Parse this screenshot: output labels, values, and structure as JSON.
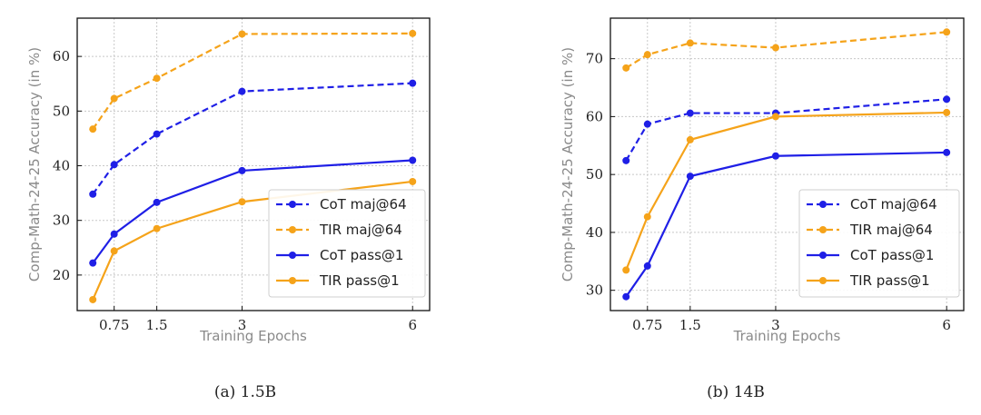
{
  "chart_data": [
    {
      "type": "line",
      "ylabel": "Comp-Math-24-25 Accuracy (in %)",
      "xlabel": "Training Epochs",
      "x": [
        0.375,
        0.75,
        1.5,
        3,
        6
      ],
      "xticks": [
        0.75,
        1.5,
        3,
        6
      ],
      "xtick_labels": [
        "0.75",
        "1.5",
        "3",
        "6"
      ],
      "yticks": [
        20,
        30,
        40,
        50,
        60
      ],
      "xlim": [
        0.1,
        6.3
      ],
      "ylim": [
        13.5,
        67
      ],
      "grid": true,
      "legend_position": "lower-right",
      "series": [
        {
          "name": "CoT maj@64",
          "style": "dashed",
          "color": "#1f1fe6",
          "values": [
            34.8,
            40.2,
            45.8,
            53.6,
            55.1
          ]
        },
        {
          "name": "TIR maj@64",
          "style": "dashed",
          "color": "#f5a31a",
          "values": [
            46.7,
            52.3,
            56.0,
            64.1,
            64.2
          ]
        },
        {
          "name": "CoT pass@1",
          "style": "solid",
          "color": "#1f1fe6",
          "values": [
            22.2,
            27.5,
            33.3,
            39.1,
            41.0
          ]
        },
        {
          "name": "TIR pass@1",
          "style": "solid",
          "color": "#f5a31a",
          "values": [
            15.5,
            24.4,
            28.5,
            33.4,
            37.1
          ]
        }
      ]
    },
    {
      "type": "line",
      "ylabel": "Comp-Math-24-25 Accuracy (in %)",
      "xlabel": "Training Epochs",
      "x": [
        0.375,
        0.75,
        1.5,
        3,
        6
      ],
      "xticks": [
        0.75,
        1.5,
        3,
        6
      ],
      "xtick_labels": [
        "0.75",
        "1.5",
        "3",
        "6"
      ],
      "yticks": [
        30,
        40,
        50,
        60,
        70
      ],
      "xlim": [
        0.1,
        6.3
      ],
      "ylim": [
        26.5,
        77
      ],
      "grid": true,
      "legend_position": "lower-right",
      "series": [
        {
          "name": "CoT maj@64",
          "style": "dashed",
          "color": "#1f1fe6",
          "values": [
            52.4,
            58.7,
            60.6,
            60.6,
            63.0
          ]
        },
        {
          "name": "TIR maj@64",
          "style": "dashed",
          "color": "#f5a31a",
          "values": [
            68.4,
            70.7,
            72.7,
            71.9,
            74.6
          ]
        },
        {
          "name": "CoT pass@1",
          "style": "solid",
          "color": "#1f1fe6",
          "values": [
            28.9,
            34.2,
            49.7,
            53.2,
            53.8
          ]
        },
        {
          "name": "TIR pass@1",
          "style": "solid",
          "color": "#f5a31a",
          "values": [
            33.5,
            42.7,
            56.0,
            60.0,
            60.7
          ]
        }
      ]
    }
  ],
  "captions": {
    "a": "(a) 1.5B",
    "b": "(b) 14B"
  }
}
